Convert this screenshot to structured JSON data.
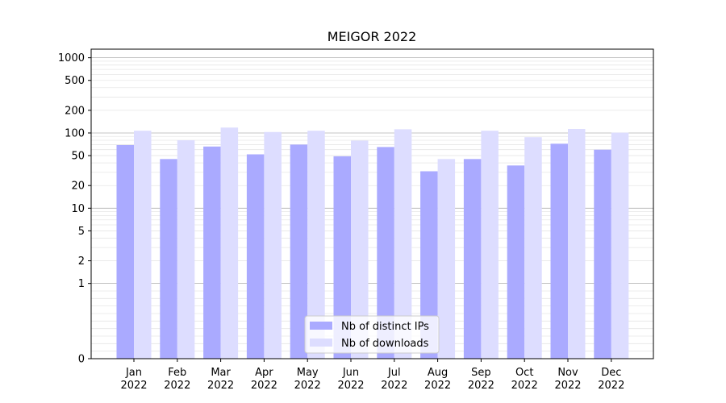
{
  "chart_data": {
    "type": "bar",
    "title": "MEIGOR 2022",
    "xlabel": "",
    "ylabel": "",
    "scale": "symlog",
    "ylim": [
      0,
      1300
    ],
    "yticks": [
      0,
      1,
      2,
      5,
      10,
      20,
      50,
      100,
      200,
      500,
      1000
    ],
    "ytick_labels": [
      "0",
      "1",
      "2",
      "5",
      "10",
      "20",
      "50",
      "100",
      "200",
      "500",
      "1000"
    ],
    "grid": true,
    "legend_position": "bottom-center",
    "categories": [
      {
        "month": "Jan",
        "year": "2022"
      },
      {
        "month": "Feb",
        "year": "2022"
      },
      {
        "month": "Mar",
        "year": "2022"
      },
      {
        "month": "Apr",
        "year": "2022"
      },
      {
        "month": "May",
        "year": "2022"
      },
      {
        "month": "Jun",
        "year": "2022"
      },
      {
        "month": "Jul",
        "year": "2022"
      },
      {
        "month": "Aug",
        "year": "2022"
      },
      {
        "month": "Sep",
        "year": "2022"
      },
      {
        "month": "Oct",
        "year": "2022"
      },
      {
        "month": "Nov",
        "year": "2022"
      },
      {
        "month": "Dec",
        "year": "2022"
      }
    ],
    "series": [
      {
        "name": "Nb of distinct IPs",
        "color": "#aaaaff",
        "values": [
          69,
          45,
          66,
          52,
          70,
          49,
          65,
          31,
          45,
          37,
          72,
          60
        ]
      },
      {
        "name": "Nb of downloads",
        "color": "#ddddff",
        "values": [
          107,
          80,
          118,
          103,
          107,
          79,
          112,
          45,
          107,
          88,
          113,
          101
        ]
      }
    ]
  }
}
